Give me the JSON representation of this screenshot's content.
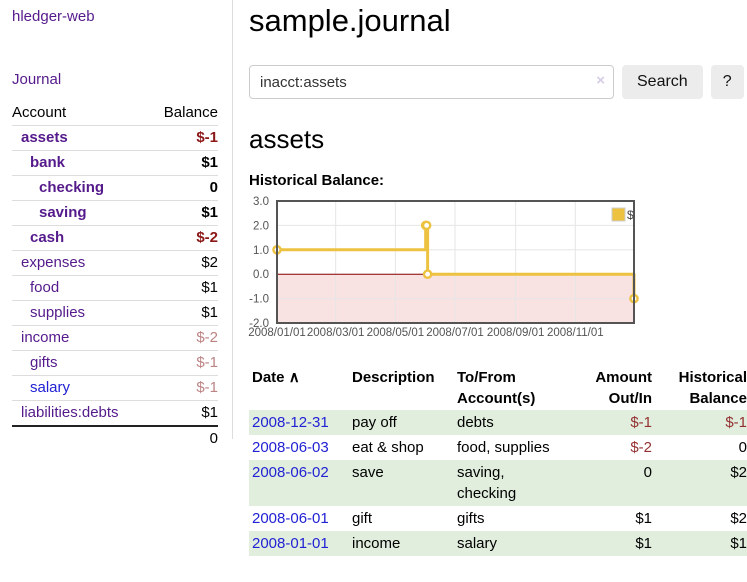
{
  "palette": {
    "link_purple": "#551a8b",
    "link_blue": "#2122d4",
    "negative_strong": "#8b1717",
    "negative": "#943030",
    "negative_muted": "#bd8383",
    "row_green": "#e1eede",
    "chart_gold": "#edc240"
  },
  "sidebar": {
    "brand": "hledger-web",
    "journal_link": "Journal",
    "accounts": {
      "col_account": "Account",
      "col_balance": "Balance",
      "rows": [
        {
          "name": "assets",
          "depth": 0,
          "current": true,
          "balance": "$-1",
          "tone": "negative_strong"
        },
        {
          "name": "bank",
          "depth": 1,
          "current": true,
          "balance": "$1",
          "tone": "positive"
        },
        {
          "name": "checking",
          "depth": 2,
          "current": true,
          "balance": "0",
          "tone": "positive"
        },
        {
          "name": "saving",
          "depth": 2,
          "current": true,
          "balance": "$1",
          "tone": "positive"
        },
        {
          "name": "cash",
          "depth": 1,
          "current": true,
          "balance": "$-2",
          "tone": "negative_strong"
        },
        {
          "name": "expenses",
          "depth": 0,
          "current": false,
          "balance": "$2",
          "tone": "positive"
        },
        {
          "name": "food",
          "depth": 1,
          "current": false,
          "balance": "$1",
          "tone": "positive"
        },
        {
          "name": "supplies",
          "depth": 1,
          "current": false,
          "balance": "$1",
          "tone": "positive"
        },
        {
          "name": "income",
          "depth": 0,
          "current": false,
          "balance": "$-2",
          "tone": "negative_muted"
        },
        {
          "name": "gifts",
          "depth": 1,
          "current": false,
          "balance": "$-1",
          "tone": "negative_muted"
        },
        {
          "name": "salary",
          "depth": 1,
          "current": false,
          "balance": "$-1",
          "tone": "negative_muted",
          "unvisited": true
        },
        {
          "name": "liabilities:debts",
          "depth": 0,
          "current": false,
          "balance": "$1",
          "tone": "positive"
        }
      ],
      "total": "0"
    }
  },
  "main": {
    "title": "sample.journal",
    "search": {
      "value": "inacct:assets",
      "clear_icon": "×",
      "button_label": "Search",
      "help_label": "?"
    },
    "account_heading": "assets",
    "chart_label": "Historical Balance:"
  },
  "chart_data": {
    "type": "line",
    "step": true,
    "title": "Historical Balance:",
    "series": [
      {
        "name": "$",
        "color": "#edc240",
        "points": [
          [
            "2008-01-01",
            1
          ],
          [
            "2008-06-01",
            2
          ],
          [
            "2008-06-02",
            2
          ],
          [
            "2008-06-03",
            0
          ],
          [
            "2008-12-31",
            -1
          ]
        ]
      }
    ],
    "x_range": [
      "2008-01-01",
      "2008-12-31"
    ],
    "ylim": [
      -2,
      3
    ],
    "y_ticks": [
      3.0,
      2.0,
      1.0,
      0.0,
      -1.0,
      -2.0
    ],
    "x_ticks": [
      "2008/01/01",
      "2008/03/01",
      "2008/05/01",
      "2008/07/01",
      "2008/09/01",
      "2008/11/01"
    ],
    "legend": "$",
    "legend_position": "top-right",
    "grid": true,
    "markings": {
      "below_zero_fill": "#f9e2e2",
      "zero_line_color": "#8b0000"
    }
  },
  "register": {
    "columns": {
      "date": "Date",
      "date_sort_icon": "∧",
      "description": "Description",
      "accounts": "To/From Account(s)",
      "amount": "Amount Out/In",
      "balance": "Historical Balance"
    },
    "rows": [
      {
        "date": "2008-12-31",
        "description": "pay off",
        "accounts": "debts",
        "amount": "$-1",
        "balance": "$-1"
      },
      {
        "date": "2008-06-03",
        "description": "eat & shop",
        "accounts": "food, supplies",
        "amount": "$-2",
        "balance": "0"
      },
      {
        "date": "2008-06-02",
        "description": "save",
        "accounts": "saving,\nchecking",
        "amount": "0",
        "balance": "$2"
      },
      {
        "date": "2008-06-01",
        "description": "gift",
        "accounts": "gifts",
        "amount": "$1",
        "balance": "$2"
      },
      {
        "date": "2008-01-01",
        "description": "income",
        "accounts": "salary",
        "amount": "$1",
        "balance": "$1"
      }
    ]
  }
}
